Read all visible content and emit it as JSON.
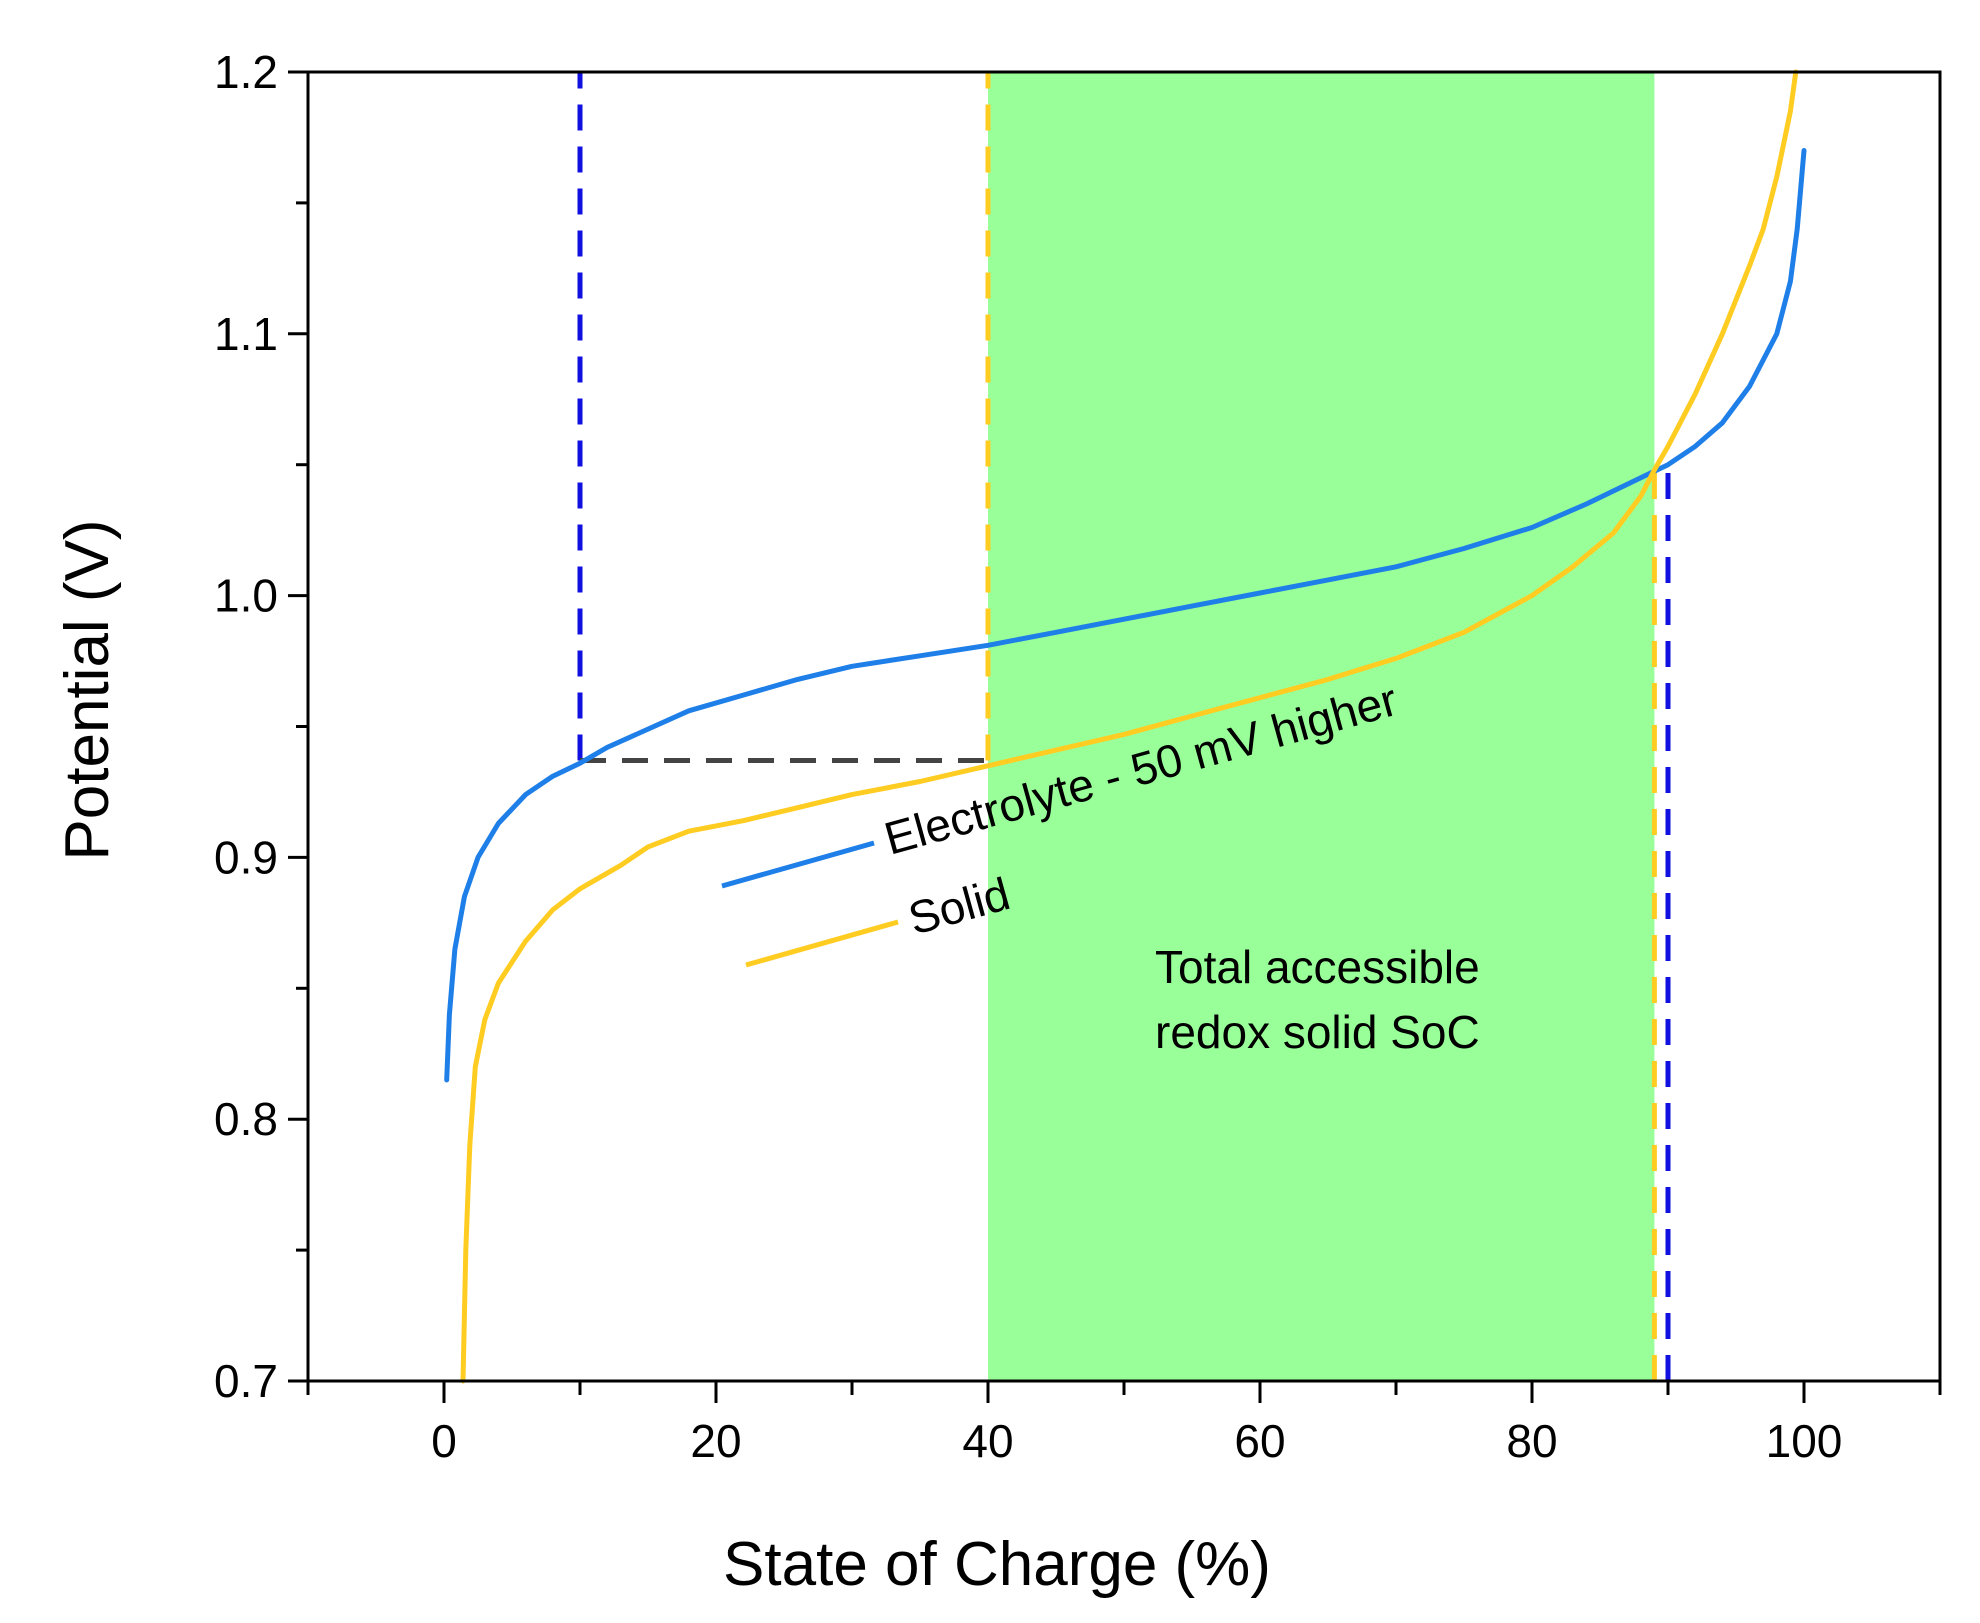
{
  "chart_data": {
    "type": "line",
    "xlabel": "State of Charge (%)",
    "ylabel": "Potential (V)",
    "xlim": [
      -10,
      110
    ],
    "ylim": [
      0.7,
      1.2
    ],
    "xticks": [
      0,
      20,
      40,
      60,
      80,
      100
    ],
    "yticks": [
      0.7,
      0.8,
      0.9,
      1.0,
      1.1,
      1.2
    ],
    "xtick_labels": [
      "0",
      "20",
      "40",
      "60",
      "80",
      "100"
    ],
    "ytick_labels": [
      "0.7",
      "0.8",
      "0.9",
      "1.0",
      "1.1",
      "1.2"
    ],
    "grid": false,
    "series": [
      {
        "name": "Electrolyte - 50 mV higher",
        "color": "#1f7fe8",
        "x": [
          0.2,
          0.4,
          0.8,
          1.5,
          2.5,
          4,
          6,
          8,
          10,
          12,
          15,
          18,
          22,
          26,
          30,
          35,
          40,
          45,
          50,
          55,
          60,
          65,
          70,
          75,
          80,
          84,
          88,
          90,
          92,
          94,
          96,
          97,
          98,
          99,
          99.5,
          100
        ],
        "y": [
          0.815,
          0.84,
          0.865,
          0.885,
          0.9,
          0.913,
          0.924,
          0.931,
          0.936,
          0.942,
          0.949,
          0.956,
          0.962,
          0.968,
          0.973,
          0.977,
          0.981,
          0.986,
          0.991,
          0.996,
          1.001,
          1.006,
          1.011,
          1.018,
          1.026,
          1.035,
          1.045,
          1.05,
          1.057,
          1.066,
          1.08,
          1.09,
          1.1,
          1.12,
          1.14,
          1.17
        ]
      },
      {
        "name": "Solid",
        "color": "#ffcc22",
        "x": [
          1.4,
          1.6,
          1.9,
          2.3,
          3,
          4,
          6,
          8,
          10,
          13,
          15,
          18,
          22,
          26,
          30,
          35,
          40,
          45,
          50,
          55,
          60,
          65,
          70,
          75,
          80,
          83,
          86,
          88,
          89,
          90,
          92,
          94,
          96,
          97,
          98,
          99,
          99.4
        ],
        "y": [
          0.7,
          0.75,
          0.79,
          0.82,
          0.838,
          0.852,
          0.868,
          0.88,
          0.888,
          0.897,
          0.904,
          0.91,
          0.914,
          0.919,
          0.924,
          0.929,
          0.935,
          0.941,
          0.947,
          0.954,
          0.961,
          0.968,
          0.976,
          0.986,
          1.0,
          1.011,
          1.024,
          1.038,
          1.048,
          1.057,
          1.077,
          1.1,
          1.126,
          1.14,
          1.16,
          1.185,
          1.2
        ]
      }
    ],
    "shaded_region": {
      "x_start": 40,
      "x_end": 89,
      "color": "#99ff99"
    },
    "reference_lines": [
      {
        "name": "electrolyte-10-vertical",
        "orientation": "vertical",
        "x": 10,
        "y_from": 0.937,
        "y_to": 1.2,
        "color": "#1010e0"
      },
      {
        "name": "electrolyte-90-vertical",
        "orientation": "vertical",
        "x": 90,
        "y_from": 0.7,
        "y_to": 1.048,
        "color": "#1010e0"
      },
      {
        "name": "solid-40-vertical",
        "orientation": "vertical",
        "x": 40,
        "y_from": 0.937,
        "y_to": 1.2,
        "color": "#ffcc22"
      },
      {
        "name": "solid-89-vertical",
        "orientation": "vertical",
        "x": 89,
        "y_from": 0.7,
        "y_to": 1.049,
        "color": "#ffcc22"
      },
      {
        "name": "potential-horizontal",
        "orientation": "horizontal",
        "y": 0.937,
        "x_from": 10,
        "x_to": 40,
        "color": "#444444"
      }
    ],
    "annotations": {
      "electrolyte_label": "Electrolyte - 50 mV higher",
      "solid_label": "Solid",
      "region_line1": "Total accessible",
      "region_line2": "redox solid SoC"
    }
  }
}
